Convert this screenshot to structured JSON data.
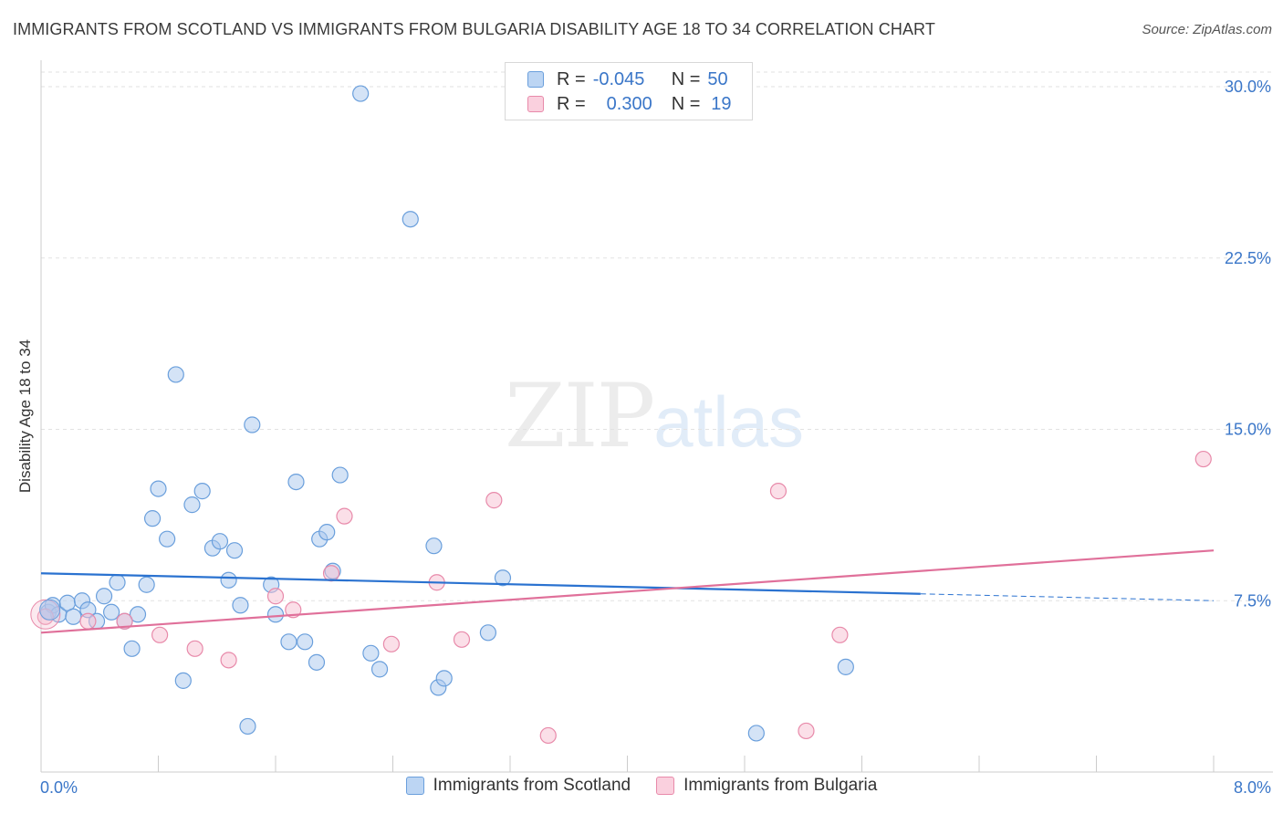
{
  "header": {
    "title": "IMMIGRANTS FROM SCOTLAND VS IMMIGRANTS FROM BULGARIA DISABILITY AGE 18 TO 34 CORRELATION CHART",
    "source": "Source: ZipAtlas.com"
  },
  "watermark": {
    "zip": "ZIP",
    "atlas": "atlas"
  },
  "legend": {
    "rows": [
      {
        "r_label": "R =",
        "r_value": "-0.045",
        "n_label": "N =",
        "n_value": "50"
      },
      {
        "r_label": "R =",
        "r_value": "0.300",
        "n_label": "N =",
        "n_value": "19"
      }
    ]
  },
  "chart_data": {
    "type": "scatter",
    "title": "IMMIGRANTS FROM SCOTLAND VS IMMIGRANTS FROM BULGARIA DISABILITY AGE 18 TO 34 CORRELATION CHART",
    "xlabel": "",
    "ylabel": "Disability Age 18 to 34",
    "xlim": [
      0,
      8.0
    ],
    "ylim": [
      0,
      31.0
    ],
    "x_tick_labels": [
      "0.0%",
      "8.0%"
    ],
    "y_ticks": [
      7.5,
      15.0,
      22.5,
      30.0
    ],
    "y_tick_labels": [
      "7.5%",
      "15.0%",
      "22.5%",
      "30.0%"
    ],
    "grid": true,
    "legend_position": "top-center",
    "series": [
      {
        "name": "Immigrants from Scotland",
        "color": "#a9c8ee",
        "stroke": "#6a9fdc",
        "line_color": "#2a72d0",
        "r": -0.045,
        "n": 50,
        "trend": {
          "x0": 0.0,
          "y0": 8.7,
          "x1": 6.0,
          "y1": 7.8,
          "dash_to_x": 8.0,
          "dash_to_y": 7.5
        },
        "points": [
          [
            0.05,
            7.0
          ],
          [
            0.08,
            7.3
          ],
          [
            0.12,
            6.9
          ],
          [
            0.18,
            7.4
          ],
          [
            0.22,
            6.8
          ],
          [
            0.28,
            7.5
          ],
          [
            0.32,
            7.1
          ],
          [
            0.38,
            6.6
          ],
          [
            0.43,
            7.7
          ],
          [
            0.48,
            7.0
          ],
          [
            0.52,
            8.3
          ],
          [
            0.57,
            6.6
          ],
          [
            0.62,
            5.4
          ],
          [
            0.66,
            6.9
          ],
          [
            0.72,
            8.2
          ],
          [
            0.76,
            11.1
          ],
          [
            0.8,
            12.4
          ],
          [
            0.86,
            10.2
          ],
          [
            0.92,
            17.4
          ],
          [
            0.97,
            4.0
          ],
          [
            1.03,
            11.7
          ],
          [
            1.1,
            12.3
          ],
          [
            1.17,
            9.8
          ],
          [
            1.22,
            10.1
          ],
          [
            1.28,
            8.4
          ],
          [
            1.32,
            9.7
          ],
          [
            1.36,
            7.3
          ],
          [
            1.41,
            2.0
          ],
          [
            1.44,
            15.2
          ],
          [
            1.57,
            8.2
          ],
          [
            1.6,
            6.9
          ],
          [
            1.69,
            5.7
          ],
          [
            1.74,
            12.7
          ],
          [
            1.8,
            5.7
          ],
          [
            1.88,
            4.8
          ],
          [
            1.9,
            10.2
          ],
          [
            1.95,
            10.5
          ],
          [
            1.99,
            8.8
          ],
          [
            2.04,
            13.0
          ],
          [
            2.18,
            29.7
          ],
          [
            2.25,
            5.2
          ],
          [
            2.31,
            4.5
          ],
          [
            2.52,
            24.2
          ],
          [
            2.68,
            9.9
          ],
          [
            2.71,
            3.7
          ],
          [
            2.75,
            4.1
          ],
          [
            3.05,
            6.1
          ],
          [
            3.15,
            8.5
          ],
          [
            5.49,
            4.6
          ],
          [
            4.88,
            1.7
          ]
        ]
      },
      {
        "name": "Immigrants from Bulgaria",
        "color": "#f7bfd1",
        "stroke": "#e88aaa",
        "line_color": "#e0709a",
        "r": 0.3,
        "n": 19,
        "trend": {
          "x0": 0.0,
          "y0": 6.1,
          "x1": 8.0,
          "y1": 9.7
        },
        "points": [
          [
            0.03,
            6.8
          ],
          [
            0.32,
            6.6
          ],
          [
            0.57,
            6.6
          ],
          [
            0.81,
            6.0
          ],
          [
            1.05,
            5.4
          ],
          [
            1.28,
            4.9
          ],
          [
            1.6,
            7.7
          ],
          [
            1.72,
            7.1
          ],
          [
            1.98,
            8.7
          ],
          [
            2.07,
            11.2
          ],
          [
            2.39,
            5.6
          ],
          [
            2.7,
            8.3
          ],
          [
            2.87,
            5.8
          ],
          [
            3.09,
            11.9
          ],
          [
            3.46,
            1.6
          ],
          [
            5.03,
            12.3
          ],
          [
            5.22,
            1.8
          ],
          [
            5.45,
            6.0
          ],
          [
            7.93,
            13.7
          ]
        ]
      }
    ]
  }
}
